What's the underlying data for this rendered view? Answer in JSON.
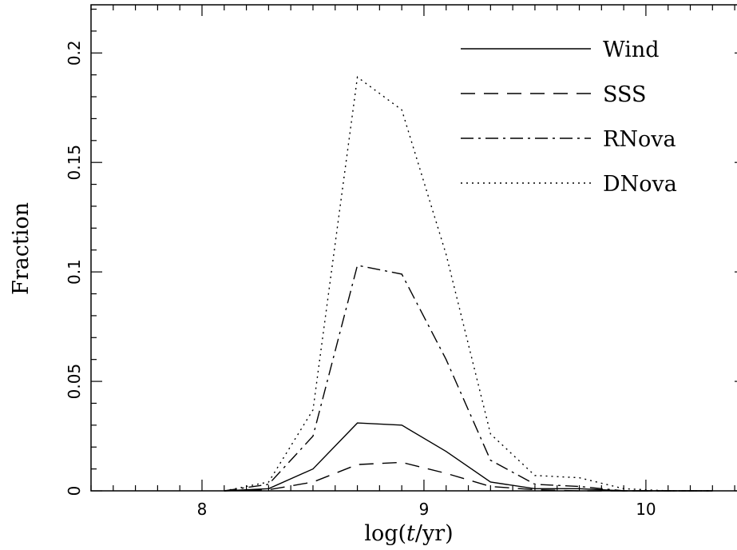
{
  "chart_data": {
    "type": "line",
    "title": "",
    "xlabel_prefix": "log(",
    "xlabel_var": "t",
    "xlabel_suffix": "/yr)",
    "ylabel": "Fraction",
    "xlim": [
      7.5,
      10.45
    ],
    "ylim": [
      0,
      0.222
    ],
    "x_ticks": [
      8,
      9,
      10
    ],
    "x_tick_labels": [
      "8",
      "9",
      "10"
    ],
    "y_ticks": [
      0,
      0.05,
      0.1,
      0.15,
      0.2
    ],
    "y_tick_labels": [
      "0",
      "0.05",
      "0.1",
      "0.15",
      "0.2"
    ],
    "grid": false,
    "legend_position": "top-right",
    "x": [
      8.1,
      8.3,
      8.5,
      8.7,
      8.9,
      9.1,
      9.3,
      9.5,
      9.7,
      9.9,
      10.1,
      10.3
    ],
    "series": [
      {
        "name": "Wind",
        "style": "solid",
        "values": [
          0,
          0.001,
          0.01,
          0.031,
          0.03,
          0.018,
          0.004,
          0.001,
          0.001,
          0,
          0,
          0
        ]
      },
      {
        "name": "SSS",
        "style": "dashed",
        "values": [
          0,
          0.0005,
          0.004,
          0.012,
          0.013,
          0.008,
          0.002,
          0.0005,
          0,
          0,
          0,
          0
        ]
      },
      {
        "name": "RNova",
        "style": "dashdot",
        "values": [
          0,
          0.003,
          0.025,
          0.103,
          0.099,
          0.06,
          0.014,
          0.003,
          0.002,
          0,
          0,
          0
        ]
      },
      {
        "name": "DNova",
        "style": "dotted",
        "values": [
          0,
          0.004,
          0.037,
          0.189,
          0.174,
          0.108,
          0.026,
          0.007,
          0.006,
          0.001,
          0,
          0
        ]
      }
    ]
  }
}
